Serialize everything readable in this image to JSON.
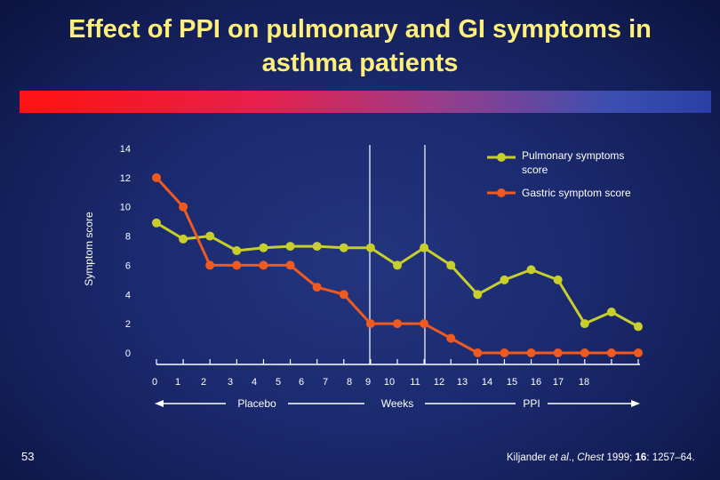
{
  "slide": {
    "title_line1": "Effect of PPI on pulmonary and GI symptoms in",
    "title_line2": "asthma patients",
    "slide_number": "53",
    "citation": {
      "authors": "Kiljander ",
      "etal": "et al",
      "journal_prefix": "., ",
      "journal": "Chest",
      "year": " 1999; ",
      "volume": "16",
      "pages": ": 1257–64."
    }
  },
  "chart_data": {
    "type": "line",
    "ylabel": "Symptom score",
    "ylim": [
      0,
      14
    ],
    "yticks": [
      0,
      2,
      4,
      6,
      8,
      10,
      12,
      14
    ],
    "x": [
      0,
      1,
      2,
      3,
      4,
      5,
      6,
      7,
      8,
      9,
      10,
      11,
      12,
      13,
      14,
      15,
      16,
      17,
      18
    ],
    "x_tick_labels": [
      "0",
      "1",
      "2",
      "3",
      "4",
      "5",
      "6",
      "7",
      "8",
      "9",
      "10",
      "11",
      "12",
      "13",
      "14",
      "15",
      "16",
      "17",
      "18"
    ],
    "xlim": [
      0,
      18
    ],
    "series": [
      {
        "name": "Pulmonary symptoms score",
        "color": "#c8cf2a",
        "values": [
          8.9,
          7.8,
          8.0,
          7.0,
          7.2,
          7.3,
          7.3,
          7.2,
          7.2,
          6.0,
          7.2,
          6.0,
          4.0,
          5.0,
          5.7,
          5.0,
          2.0,
          2.8,
          1.8
        ]
      },
      {
        "name": "Gastric symptom score",
        "color": "#f05a1e",
        "values": [
          12.0,
          10.0,
          6.0,
          6.0,
          6.0,
          6.0,
          4.5,
          4.0,
          2.0,
          2.0,
          2.0,
          1.0,
          0.0,
          0.0,
          0.0,
          0.0,
          0.0,
          0.0,
          0.0
        ]
      }
    ],
    "phases": [
      {
        "label": "Placebo"
      },
      {
        "label": "Weeks"
      },
      {
        "label": "PPI"
      }
    ],
    "legend_position": "top-right",
    "grid": false
  }
}
